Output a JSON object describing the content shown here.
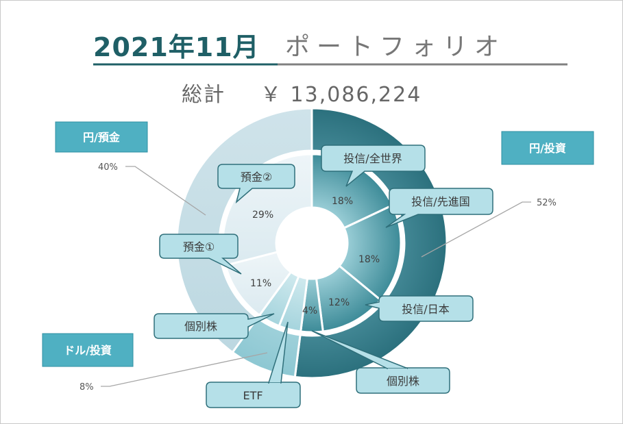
{
  "title": {
    "main": "2021年11月",
    "sub": "ポートフォリオ",
    "total_label": "総計",
    "total_value": "￥ 13,086,224"
  },
  "colors": {
    "title_main": "#1f5f66",
    "title_underline": "#1f5f66",
    "title_sub_underline": "#808080",
    "box_fill": "#4fb0c2",
    "box_border": "#2f8fa3",
    "callout_fill": "#b5e0e8",
    "callout_border": "#2f6f7a",
    "leader_line": "#a6a6a6",
    "outer_invest_dark": "#2a6f7c",
    "outer_invest_light": "#73b8c6",
    "outer_deposit": "#c6dee6",
    "outer_dollar": "#9ccfd9",
    "inner_invest_dark": "#3d8b98",
    "inner_invest_light": "#8ac7d2",
    "inner_deposit": "#e3eef2",
    "inner_dollar": "#b8dde5"
  },
  "chart_data": {
    "type": "donut",
    "rings": [
      {
        "name": "",
        "slices": [
          {
            "label": "円/投資",
            "value": 52,
            "pct_text": "52%",
            "group": "invest"
          },
          {
            "label": "ドル/投資",
            "value": 8,
            "pct_text": "8%",
            "group": "dollar"
          },
          {
            "label": "円/預金",
            "value": 40,
            "pct_text": "40%",
            "group": "deposit"
          }
        ]
      },
      {
        "name": "",
        "slices": [
          {
            "label": "投信/全世界",
            "value": 18,
            "pct_text": "18%",
            "group": "invest"
          },
          {
            "label": "投信/先進国",
            "value": 18,
            "pct_text": "18%",
            "group": "invest"
          },
          {
            "label": "投信/日本",
            "value": 12,
            "pct_text": "12%",
            "group": "invest"
          },
          {
            "label": "個別株",
            "value": 4,
            "pct_text": "4%",
            "group": "invest"
          },
          {
            "label": "ETF",
            "value": 4,
            "pct_text": "",
            "group": "dollar"
          },
          {
            "label": "個別株",
            "value": 4,
            "pct_text": "",
            "group": "dollar"
          },
          {
            "label": "預金①",
            "value": 11,
            "pct_text": "11%",
            "group": "deposit"
          },
          {
            "label": "預金②",
            "value": 29,
            "pct_text": "29%",
            "group": "deposit"
          }
        ]
      }
    ],
    "legend": "none"
  }
}
